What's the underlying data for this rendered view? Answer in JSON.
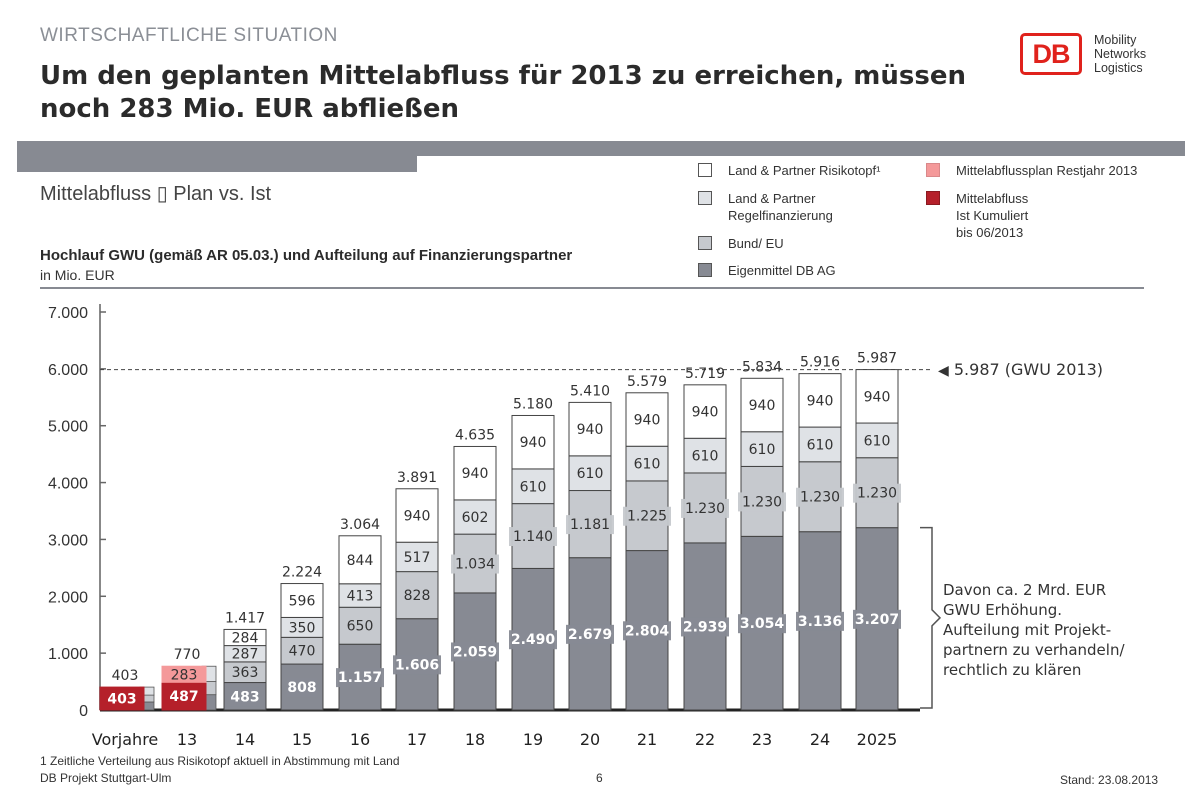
{
  "header": {
    "section_label": "WIRTSCHAFTLICHE SITUATION",
    "headline": "Um den geplanten Mittelabfluss für 2013 zu erreichen, müssen noch 283 Mio. EUR abfließen",
    "logo_mark": "DB",
    "logo_text": [
      "Mobility",
      "Networks",
      "Logistics"
    ]
  },
  "subtitle": "Mittelabfluss ▯ Plan vs. Ist",
  "chart_heading": "Hochlauf GWU (gemäß AR 05.03.) und Aufteilung auf Finanzierungspartner",
  "chart_unit": "in Mio. EUR",
  "legend": [
    {
      "label": "Land & Partner Risikotopf¹",
      "color": "#ffffff"
    },
    {
      "label": "Land & Partner\nRegelfinanzierung",
      "color": "#dfe2e6"
    },
    {
      "label": "Bund/ EU",
      "color": "#c6c9ce"
    },
    {
      "label": "Eigenmittel DB AG",
      "color": "#878a93"
    },
    {
      "label": "Mittelabflussplan Restjahr 2013",
      "color": "#f4999a"
    },
    {
      "label": "Mittelabfluss Ist Kumuliert\nbis 06/2013",
      "color": "#b5202a"
    }
  ],
  "reference_label": "5.987 (GWU 2013)",
  "annotation": "Davon ca. 2 Mrd. EUR\nGWU Erhöhung.\nAufteilung mit Projekt-\npartnern zu verhandeln/\nrechtlich zu klären",
  "footer": {
    "footnote": "1 Zeitliche Verteilung aus Risikotopf aktuell in Abstimmung mit Land",
    "left": "DB Projekt Stuttgart-Ulm",
    "page_number": "6",
    "right": "Stand: 23.08.2013"
  },
  "chart_data": {
    "type": "bar",
    "stacked": true,
    "title": "Hochlauf GWU (gemäß AR 05.03.) und Aufteilung auf Finanzierungspartner",
    "xlabel": "",
    "ylabel": "in Mio. EUR",
    "ylim": [
      0,
      7000
    ],
    "yticks": [
      0,
      1000,
      2000,
      3000,
      4000,
      5000,
      6000,
      7000
    ],
    "ytick_labels": [
      "0",
      "1.000",
      "2.000",
      "3.000",
      "4.000",
      "5.000",
      "6.000",
      "7.000"
    ],
    "grid": false,
    "legend_position": "top-right",
    "categories": [
      "Vorjahre",
      "13",
      "14",
      "15",
      "16",
      "17",
      "18",
      "19",
      "20",
      "21",
      "22",
      "23",
      "24",
      "2025"
    ],
    "series": [
      {
        "name": "Eigenmittel DB AG",
        "color": "#878a93",
        "values": [
          null,
          null,
          483,
          808,
          1157,
          1606,
          2059,
          2490,
          2679,
          2804,
          2939,
          3054,
          3136,
          3207
        ],
        "labels": [
          null,
          null,
          "483",
          "808",
          "1.157",
          "1.606",
          "2.059",
          "2.490",
          "2.679",
          "2.804",
          "2.939",
          "3.054",
          "3.136",
          "3.207"
        ]
      },
      {
        "name": "Bund/ EU",
        "color": "#c6c9ce",
        "values": [
          null,
          null,
          363,
          470,
          650,
          828,
          1034,
          1140,
          1181,
          1225,
          1230,
          1230,
          1230,
          1230
        ],
        "labels": [
          null,
          null,
          "363",
          "470",
          "650",
          "828",
          "1.034",
          "1.140",
          "1.181",
          "1.225",
          "1.230",
          "1.230",
          "1.230",
          "1.230"
        ]
      },
      {
        "name": "Land & Partner Regelfinanzierung",
        "color": "#dfe2e6",
        "values": [
          null,
          null,
          287,
          350,
          413,
          517,
          602,
          610,
          610,
          610,
          610,
          610,
          610,
          610
        ],
        "labels": [
          null,
          null,
          "287",
          "350",
          "413",
          "517",
          "602",
          "610",
          "610",
          "610",
          "610",
          "610",
          "610",
          "610"
        ]
      },
      {
        "name": "Land & Partner Risikotopf",
        "color": "#ffffff",
        "values": [
          null,
          null,
          284,
          596,
          844,
          940,
          940,
          940,
          940,
          940,
          940,
          940,
          940,
          940
        ],
        "labels": [
          null,
          null,
          "284",
          "596",
          "844",
          "940",
          "940",
          "940",
          "940",
          "940",
          "940",
          "940",
          "940",
          "940"
        ]
      }
    ],
    "actual_series": [
      {
        "name": "Mittelabfluss Ist Kumuliert bis 06/2013",
        "color": "#b5202a",
        "values": [
          403,
          487,
          null,
          null,
          null,
          null,
          null,
          null,
          null,
          null,
          null,
          null,
          null,
          null
        ],
        "labels": [
          "403",
          "487",
          null,
          null,
          null,
          null,
          null,
          null,
          null,
          null,
          null,
          null,
          null,
          null
        ]
      },
      {
        "name": "Mittelabflussplan Restjahr 2013",
        "color": "#f4999a",
        "values": [
          null,
          283,
          null,
          null,
          null,
          null,
          null,
          null,
          null,
          null,
          null,
          null,
          null,
          null
        ],
        "labels": [
          null,
          "283",
          null,
          null,
          null,
          null,
          null,
          null,
          null,
          null,
          null,
          null,
          null,
          null
        ]
      }
    ],
    "totals": [
      403,
      770,
      1417,
      2224,
      3064,
      3891,
      4635,
      5180,
      5410,
      5579,
      5719,
      5834,
      5916,
      5987
    ],
    "total_labels": [
      "403",
      "770",
      "1.417",
      "2.224",
      "3.064",
      "3.891",
      "4.635",
      "5.180",
      "5.410",
      "5.579",
      "5.719",
      "5.834",
      "5.916",
      "5.987"
    ],
    "reference_line": {
      "value": 5987,
      "label": "5.987 (GWU 2013)",
      "style": "dashed"
    },
    "bracket_annotation": {
      "from_category": "2025",
      "range": [
        0,
        3207
      ],
      "text": "Davon ca. 2 Mrd. EUR GWU Erhöhung. Aufteilung mit Projektpartnern zu verhandeln/ rechtlich zu klären"
    }
  }
}
